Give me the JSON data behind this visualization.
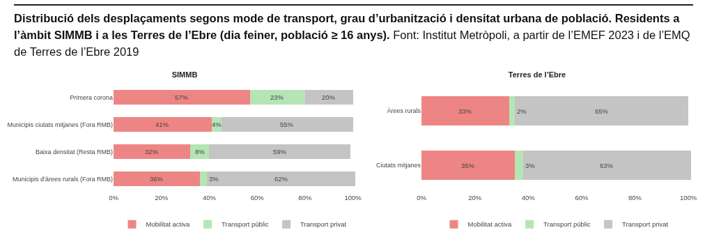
{
  "chart_data": [
    {
      "type": "other",
      "title": "Distribució dels desplaçaments segons mode de transport, grau d’urbanització i densitat urbana de població. Residents a l’àmbit SIMMB i a les Terres de l’Ebre (dia feiner, població ≥ 16 anys).",
      "annotations": [
        "Font: Institut Metròpoli, a partir de l’EMEF 2023 i de l’EMQ de Terres de l’Ebre 2019"
      ]
    },
    {
      "type": "bar",
      "title": "SIMMB",
      "orientation": "horizontal",
      "stacked": true,
      "categories": [
        "Primera corona",
        "Municipis ciutats mitjanes (Fora RMB)",
        "Baixa densitat (Resta RMB)",
        "Municipis d’àrees rurals (Fora RMB)"
      ],
      "series": [
        {
          "name": "Mobilitat activa",
          "color": "#ee8585",
          "values": [
            57,
            41,
            32,
            36
          ],
          "value_labels": [
            "57%",
            "41%",
            "32%",
            "36%"
          ]
        },
        {
          "name": "Transport públic",
          "color": "#b5e5b5",
          "values": [
            23,
            4,
            8,
            3
          ],
          "value_labels": [
            "23%",
            "4%",
            "8%",
            "3%"
          ]
        },
        {
          "name": "Transport privat",
          "color": "#c4c4c4",
          "values": [
            20,
            55,
            59,
            62
          ],
          "value_labels": [
            "20%",
            "55%",
            "59%",
            "62%"
          ]
        }
      ],
      "xlim": [
        0,
        101
      ],
      "xticks": [
        {
          "value": 0,
          "label": "0%"
        },
        {
          "value": 20,
          "label": "20%"
        },
        {
          "value": 40,
          "label": "40%"
        },
        {
          "value": 60,
          "label": "60%"
        },
        {
          "value": 80,
          "label": "80%"
        },
        {
          "value": 100,
          "label": "100%"
        }
      ],
      "grid": false,
      "legend": "bottom"
    },
    {
      "type": "bar",
      "title": "Terres de l’Ebre",
      "orientation": "horizontal",
      "stacked": true,
      "categories": [
        "Àrees rurals",
        "Ciutats mitjanes"
      ],
      "series": [
        {
          "name": "Mobilitat activa",
          "color": "#ee8585",
          "values": [
            33,
            35
          ],
          "value_labels": [
            "33%",
            "35%"
          ]
        },
        {
          "name": "Transport públic",
          "color": "#b5e5b5",
          "values": [
            2,
            3
          ],
          "value_labels": [
            "2%",
            "3%"
          ]
        },
        {
          "name": "Transport privat",
          "color": "#c4c4c4",
          "values": [
            65,
            63
          ],
          "value_labels": [
            "65%",
            "63%"
          ]
        }
      ],
      "xlim": [
        0,
        101
      ],
      "xticks": [
        {
          "value": 0,
          "label": "0%"
        },
        {
          "value": 20,
          "label": "20%"
        },
        {
          "value": 40,
          "label": "40%"
        },
        {
          "value": 60,
          "label": "60%"
        },
        {
          "value": 80,
          "label": "80%"
        },
        {
          "value": 100,
          "label": "100%"
        }
      ],
      "grid": false,
      "legend": "bottom"
    }
  ]
}
